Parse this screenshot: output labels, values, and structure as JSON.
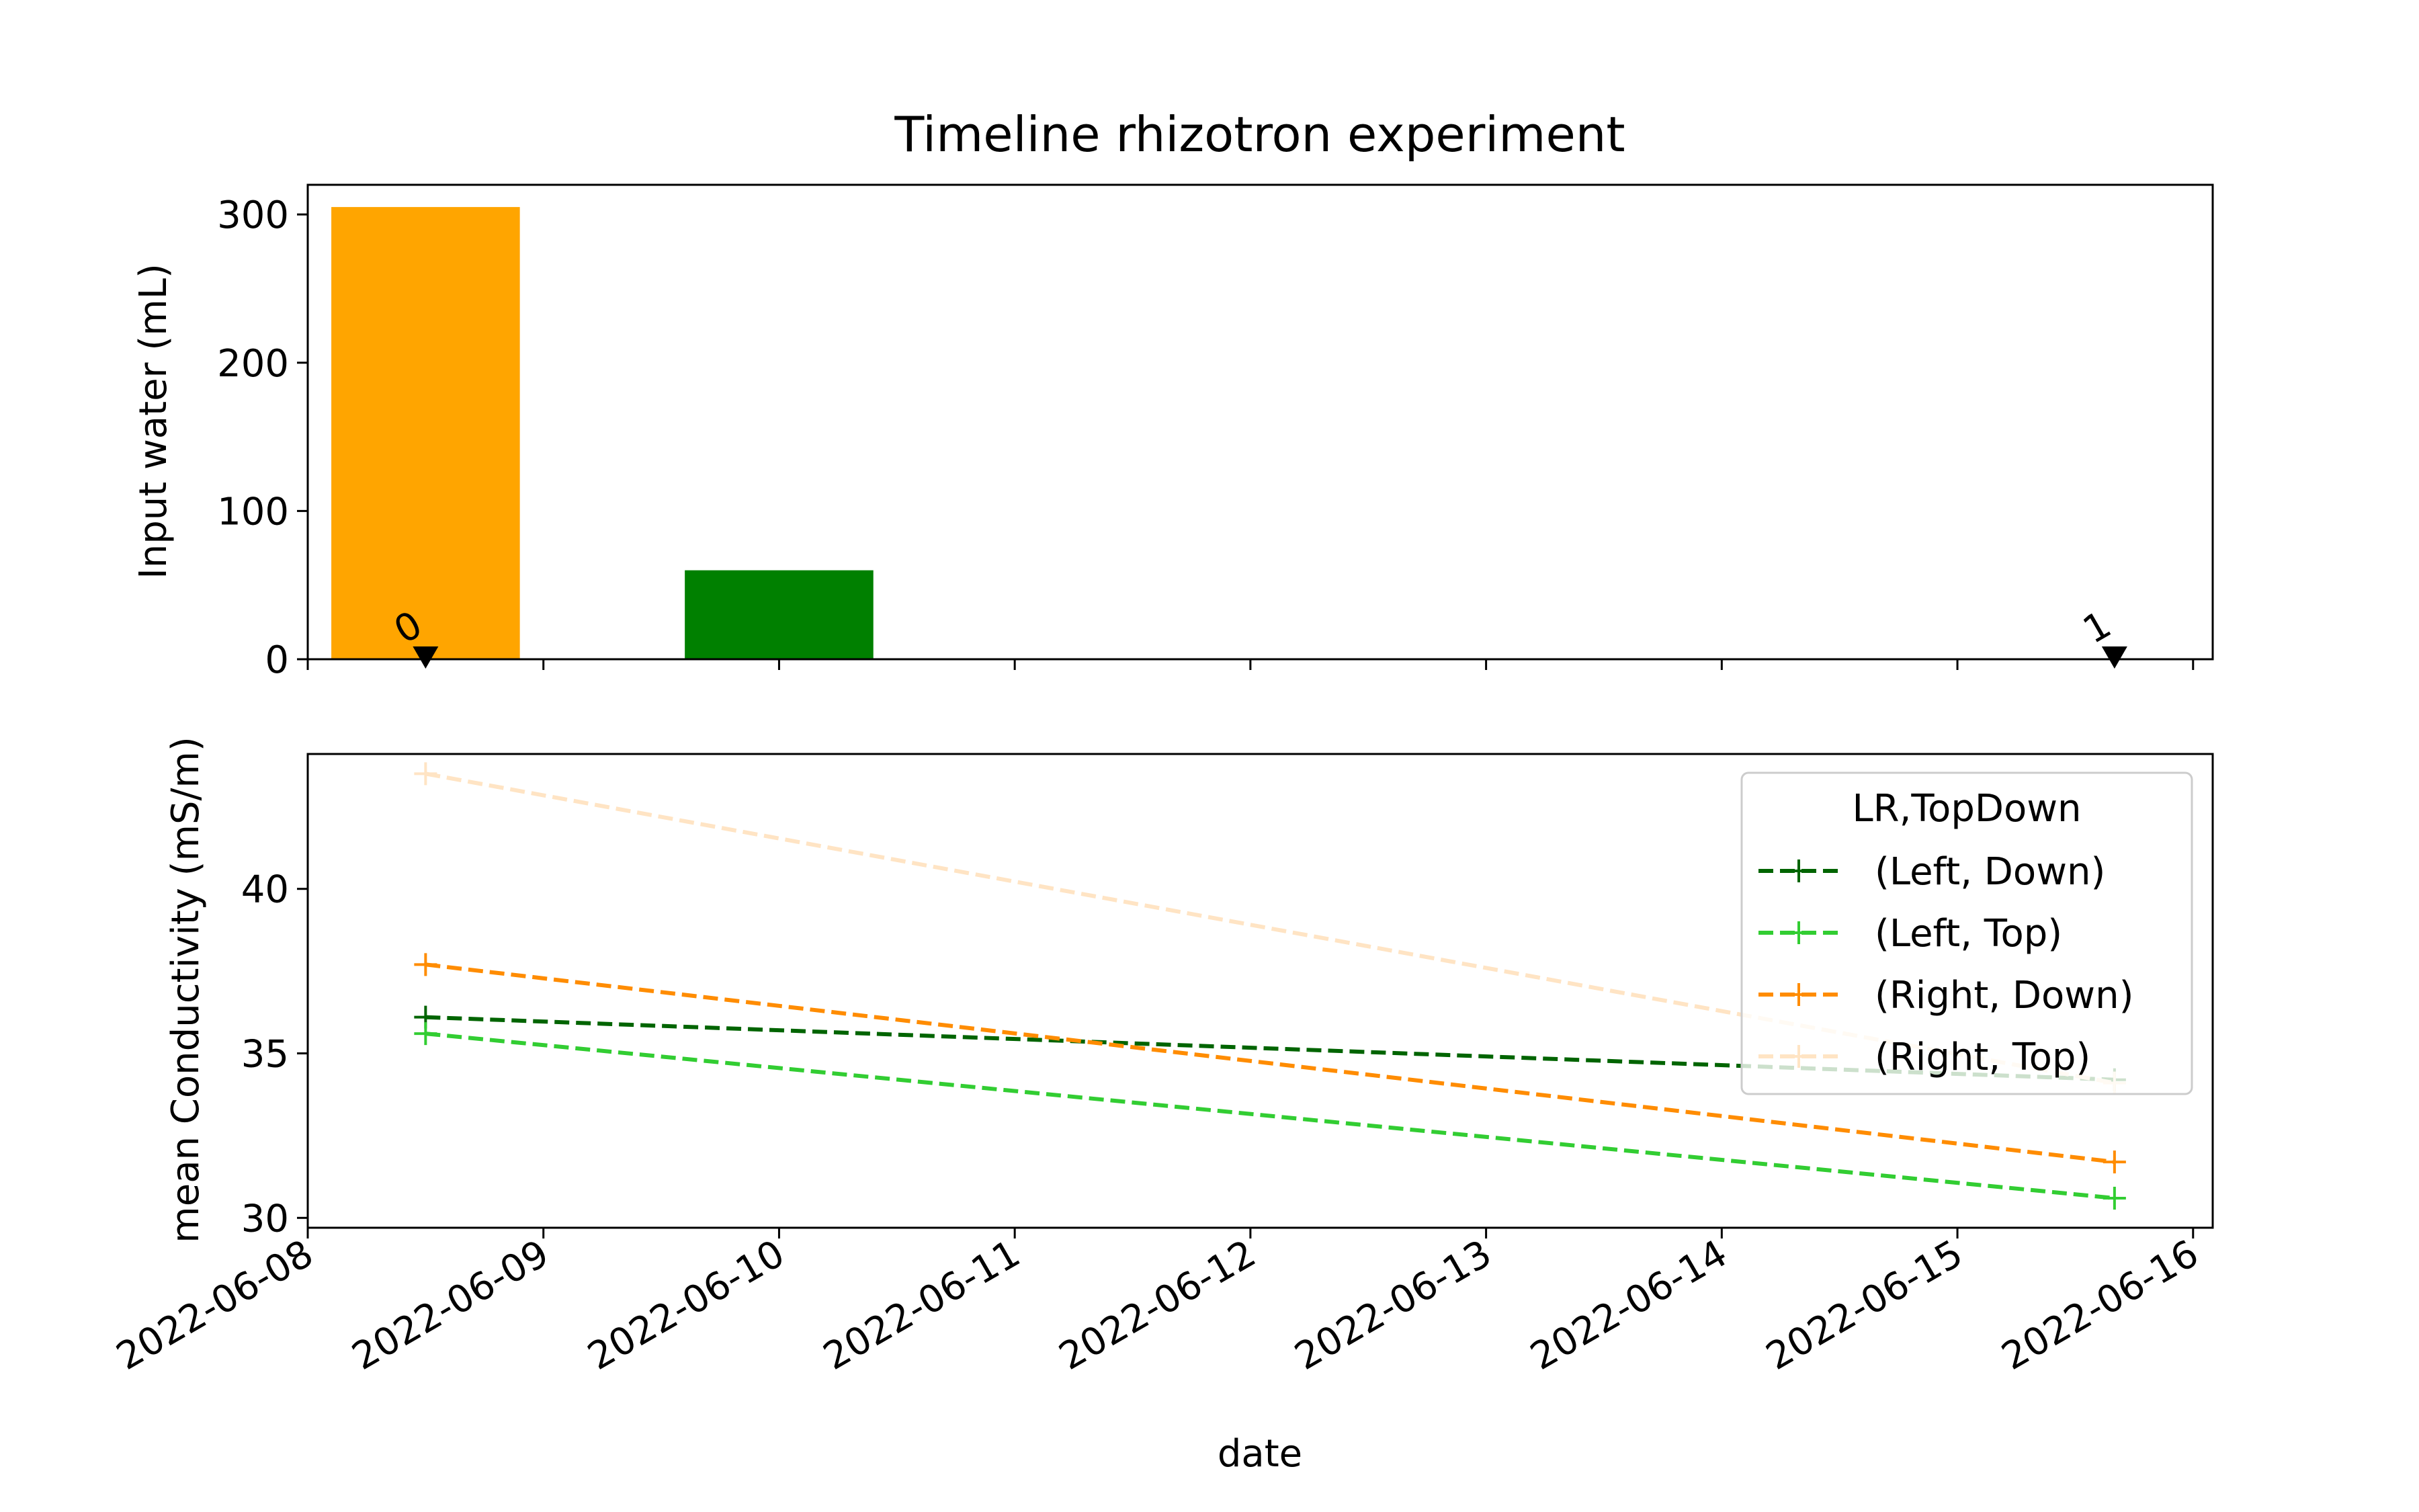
{
  "figure": {
    "background": "#ffffff"
  },
  "chart_data": [
    {
      "type": "bar",
      "title": "Timeline rhizotron experiment",
      "xlabel": "",
      "ylabel": "Input water (mL)",
      "ylim": [
        0,
        320
      ],
      "yticks": [
        0,
        100,
        200,
        300
      ],
      "xlim": [
        "2022-06-08 00:00",
        "2022-06-16 02:00"
      ],
      "xticks": [
        "2022-06-08",
        "2022-06-09",
        "2022-06-10",
        "2022-06-11",
        "2022-06-12",
        "2022-06-13",
        "2022-06-14",
        "2022-06-15",
        "2022-06-16"
      ],
      "show_xtick_labels": false,
      "bars": [
        {
          "x": "2022-06-08 12:00",
          "width_days": 0.8,
          "value": 305,
          "color": "#FFA500"
        },
        {
          "x": "2022-06-10 00:00",
          "width_days": 0.8,
          "value": 60,
          "color": "#008000"
        }
      ],
      "markers": [
        {
          "x": "2022-06-08 12:00",
          "value": 0,
          "label": "0",
          "marker": "triangle-down",
          "color": "#000000"
        },
        {
          "x": "2022-06-15 16:00",
          "value": 0,
          "label": "1",
          "marker": "triangle-down",
          "color": "#000000"
        }
      ],
      "grid": false
    },
    {
      "type": "line",
      "xlabel": "date",
      "ylabel": "mean Conductivity (mS/m)",
      "ylim": [
        29.7,
        44.1
      ],
      "yticks": [
        30,
        35,
        40
      ],
      "xlim": [
        "2022-06-08 00:00",
        "2022-06-16 02:00"
      ],
      "xticks": [
        "2022-06-08",
        "2022-06-09",
        "2022-06-10",
        "2022-06-11",
        "2022-06-12",
        "2022-06-13",
        "2022-06-14",
        "2022-06-15",
        "2022-06-16"
      ],
      "x": [
        "2022-06-08 12:00",
        "2022-06-15 16:00"
      ],
      "series": [
        {
          "name": "(Left, Down)",
          "values": [
            36.1,
            34.2
          ],
          "color": "#006400"
        },
        {
          "name": "(Left, Top)",
          "values": [
            35.6,
            30.6
          ],
          "color": "#32CD32"
        },
        {
          "name": "(Right, Down)",
          "values": [
            37.7,
            31.7
          ],
          "color": "#FF8C00"
        },
        {
          "name": "(Right, Top)",
          "values": [
            43.5,
            34.1
          ],
          "color": "#FFE4C4"
        }
      ],
      "line_style": "dashed",
      "marker": "plus",
      "legend": {
        "title": "LR,TopDown",
        "placement": "upper right"
      },
      "grid": false
    }
  ]
}
